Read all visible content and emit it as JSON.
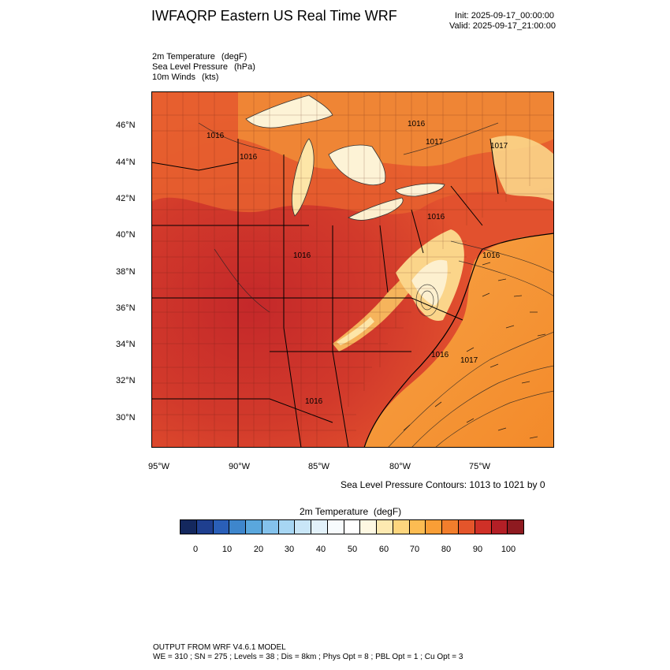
{
  "header": {
    "title": "IWFAQRP Eastern US Real Time WRF",
    "init": "Init: 2025-09-17_00:00:00",
    "valid": "Valid: 2025-09-17_21:00:00"
  },
  "fields": [
    {
      "name": "2m Temperature",
      "unit": "(degF)"
    },
    {
      "name": "Sea Level Pressure",
      "unit": "(hPa)"
    },
    {
      "name": "10m Winds",
      "unit": "(kts)"
    }
  ],
  "map": {
    "lat_labels": [
      "46°N",
      "44°N",
      "42°N",
      "40°N",
      "38°N",
      "36°N",
      "34°N",
      "32°N",
      "30°N"
    ],
    "lon_labels": [
      "95°W",
      "90°W",
      "85°W",
      "80°W",
      "75°W"
    ],
    "pressure_labels": [
      "1016",
      "1017",
      "1016",
      "1016",
      "1016",
      "1017",
      "1016",
      "1016",
      "1017",
      "1016",
      "1016"
    ],
    "colors": {
      "hot": "#c4282a",
      "warm": "#e2512e",
      "orange": "#f39b3c",
      "light": "#fde6a8",
      "pale": "#fdf3d6",
      "ocean": "#f5922e"
    }
  },
  "contour_note": "Sea Level Pressure Contours: 1013 to 1021 by 0",
  "colorbar": {
    "title": "2m Temperature",
    "unit": "(degF)",
    "colors": [
      "#14285e",
      "#1f3f8f",
      "#2a5fb8",
      "#3e86cc",
      "#5aa7dd",
      "#84c2ec",
      "#a7d6f3",
      "#c9e6f7",
      "#e2f1fa",
      "#f7fbfd",
      "#ffffff",
      "#fef8e2",
      "#fde9b1",
      "#fdd67e",
      "#fcbc52",
      "#f99e36",
      "#f27e2c",
      "#e4552b",
      "#cf3027",
      "#b31f26",
      "#8e1a20"
    ],
    "ticks": [
      "0",
      "10",
      "20",
      "30",
      "40",
      "50",
      "60",
      "70",
      "80",
      "90",
      "100"
    ]
  },
  "footer": {
    "line1": "OUTPUT FROM WRF V4.6.1 MODEL",
    "line2": "WE = 310 ; SN = 275 ; Levels = 38 ; Dis = 8km ; Phys Opt = 8 ; PBL Opt = 1 ; Cu Opt = 3"
  }
}
